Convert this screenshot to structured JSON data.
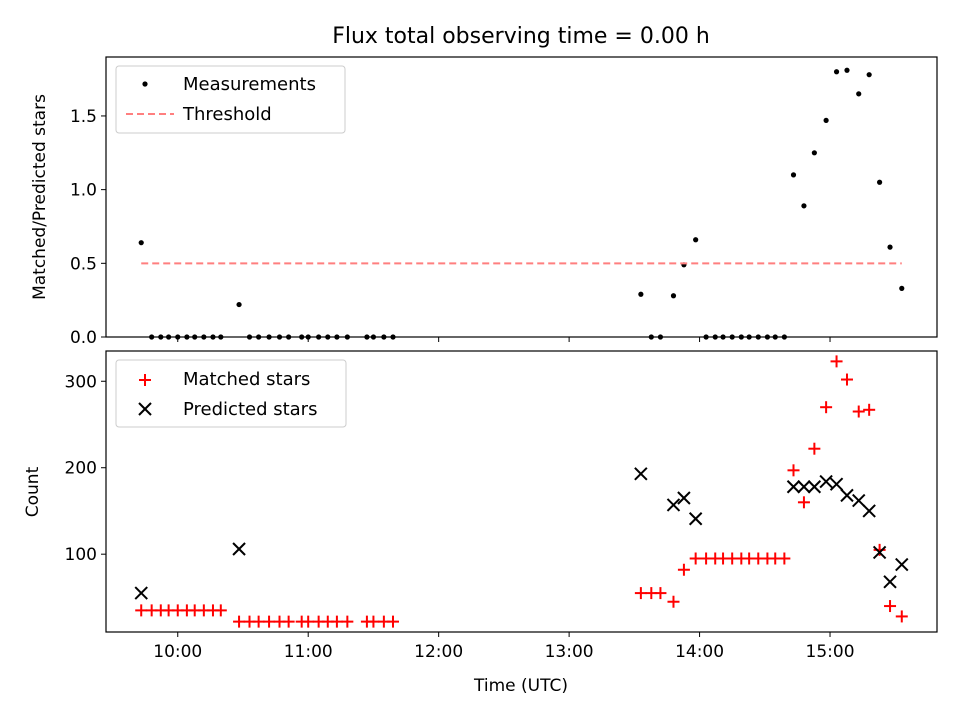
{
  "chart_data": [
    {
      "type": "scatter",
      "title": "Flux total observing time = 0.00 h",
      "xlabel": "",
      "ylabel": "Matched/Predicted stars",
      "xlim": [
        9.45,
        15.82
      ],
      "ylim": [
        0.0,
        1.9
      ],
      "yticks": [
        0.0,
        0.5,
        1.0,
        1.5
      ],
      "ytick_labels": [
        "0.0",
        "0.5",
        "1.0",
        "1.5"
      ],
      "xticks": [
        10,
        11,
        12,
        13,
        14,
        15
      ],
      "grid": false,
      "legend": "upper left",
      "legend_entries": [
        "Measurements",
        "Threshold"
      ],
      "series": [
        {
          "name": "Measurements",
          "marker": "dot",
          "color": "#000000",
          "points": [
            [
              9.72,
              0.64
            ],
            [
              9.8,
              0.0
            ],
            [
              9.87,
              0.0
            ],
            [
              9.93,
              0.0
            ],
            [
              10.0,
              0.0
            ],
            [
              10.07,
              0.0
            ],
            [
              10.13,
              0.0
            ],
            [
              10.2,
              0.0
            ],
            [
              10.27,
              0.0
            ],
            [
              10.33,
              0.0
            ],
            [
              10.47,
              0.22
            ],
            [
              10.55,
              0.0
            ],
            [
              10.62,
              0.0
            ],
            [
              10.7,
              0.0
            ],
            [
              10.78,
              0.0
            ],
            [
              10.85,
              0.0
            ],
            [
              10.95,
              0.0
            ],
            [
              11.0,
              0.0
            ],
            [
              11.08,
              0.0
            ],
            [
              11.15,
              0.0
            ],
            [
              11.22,
              0.0
            ],
            [
              11.3,
              0.0
            ],
            [
              11.45,
              0.0
            ],
            [
              11.5,
              0.0
            ],
            [
              11.58,
              0.0
            ],
            [
              11.65,
              0.0
            ],
            [
              13.55,
              0.29
            ],
            [
              13.63,
              0.0
            ],
            [
              13.7,
              0.0
            ],
            [
              13.8,
              0.28
            ],
            [
              13.88,
              0.49
            ],
            [
              13.97,
              0.66
            ],
            [
              14.05,
              0.0
            ],
            [
              14.12,
              0.0
            ],
            [
              14.18,
              0.0
            ],
            [
              14.25,
              0.0
            ],
            [
              14.32,
              0.0
            ],
            [
              14.38,
              0.0
            ],
            [
              14.45,
              0.0
            ],
            [
              14.52,
              0.0
            ],
            [
              14.58,
              0.0
            ],
            [
              14.65,
              0.0
            ],
            [
              14.72,
              1.1
            ],
            [
              14.8,
              0.89
            ],
            [
              14.88,
              1.25
            ],
            [
              14.97,
              1.47
            ],
            [
              15.05,
              1.8
            ],
            [
              15.13,
              1.81
            ],
            [
              15.22,
              1.65
            ],
            [
              15.3,
              1.78
            ],
            [
              15.38,
              1.05
            ],
            [
              15.46,
              0.61
            ],
            [
              15.55,
              0.33
            ]
          ]
        },
        {
          "name": "Threshold",
          "style": "dashed",
          "color": "#ff7f7f",
          "points": [
            [
              9.72,
              0.5
            ],
            [
              15.55,
              0.5
            ]
          ]
        }
      ]
    },
    {
      "type": "scatter",
      "title": "",
      "xlabel": "Time (UTC)",
      "ylabel": "Count",
      "xlim": [
        9.45,
        15.82
      ],
      "ylim": [
        10,
        335
      ],
      "yticks": [
        100,
        200,
        300
      ],
      "ytick_labels": [
        "100",
        "200",
        "300"
      ],
      "xticks": [
        10,
        11,
        12,
        13,
        14,
        15
      ],
      "xtick_labels": [
        "10:00",
        "11:00",
        "12:00",
        "13:00",
        "14:00",
        "15:00"
      ],
      "grid": false,
      "legend": "upper left",
      "legend_entries": [
        "Matched stars",
        "Predicted stars"
      ],
      "series": [
        {
          "name": "Matched stars",
          "marker": "plus",
          "color": "#ff0000",
          "points": [
            [
              9.72,
              35
            ],
            [
              9.8,
              35
            ],
            [
              9.87,
              35
            ],
            [
              9.93,
              35
            ],
            [
              10.0,
              35
            ],
            [
              10.07,
              35
            ],
            [
              10.13,
              35
            ],
            [
              10.2,
              35
            ],
            [
              10.27,
              35
            ],
            [
              10.33,
              35
            ],
            [
              10.47,
              22
            ],
            [
              10.55,
              22
            ],
            [
              10.62,
              22
            ],
            [
              10.7,
              22
            ],
            [
              10.78,
              22
            ],
            [
              10.85,
              22
            ],
            [
              10.95,
              22
            ],
            [
              11.0,
              22
            ],
            [
              11.08,
              22
            ],
            [
              11.15,
              22
            ],
            [
              11.22,
              22
            ],
            [
              11.3,
              22
            ],
            [
              11.45,
              22
            ],
            [
              11.5,
              22
            ],
            [
              11.58,
              22
            ],
            [
              11.65,
              22
            ],
            [
              13.55,
              55
            ],
            [
              13.63,
              55
            ],
            [
              13.7,
              55
            ],
            [
              13.8,
              45
            ],
            [
              13.88,
              82
            ],
            [
              13.97,
              95
            ],
            [
              14.05,
              95
            ],
            [
              14.12,
              95
            ],
            [
              14.18,
              95
            ],
            [
              14.25,
              95
            ],
            [
              14.32,
              95
            ],
            [
              14.38,
              95
            ],
            [
              14.45,
              95
            ],
            [
              14.52,
              95
            ],
            [
              14.58,
              95
            ],
            [
              14.65,
              95
            ],
            [
              14.72,
              197
            ],
            [
              14.8,
              160
            ],
            [
              14.88,
              222
            ],
            [
              14.97,
              270
            ],
            [
              15.05,
              323
            ],
            [
              15.13,
              302
            ],
            [
              15.22,
              265
            ],
            [
              15.3,
              267
            ],
            [
              15.38,
              105
            ],
            [
              15.46,
              40
            ],
            [
              15.55,
              28
            ]
          ]
        },
        {
          "name": "Predicted stars",
          "marker": "x",
          "color": "#000000",
          "points": [
            [
              9.72,
              55
            ],
            [
              10.47,
              106
            ],
            [
              13.55,
              193
            ],
            [
              13.8,
              157
            ],
            [
              13.88,
              165
            ],
            [
              13.97,
              141
            ],
            [
              14.72,
              178
            ],
            [
              14.8,
              178
            ],
            [
              14.88,
              178
            ],
            [
              14.97,
              184
            ],
            [
              15.05,
              181
            ],
            [
              15.13,
              168
            ],
            [
              15.22,
              162
            ],
            [
              15.3,
              150
            ],
            [
              15.38,
              102
            ],
            [
              15.46,
              68
            ],
            [
              15.55,
              88
            ]
          ]
        }
      ]
    }
  ]
}
